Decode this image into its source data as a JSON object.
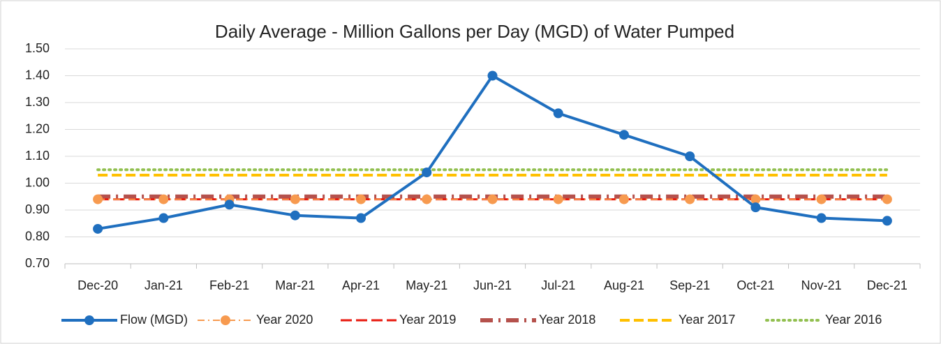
{
  "chart_data": {
    "type": "line",
    "title": "Daily Average - Million Gallons per Day (MGD) of Water Pumped",
    "categories": [
      "Dec-20",
      "Jan-21",
      "Feb-21",
      "Mar-21",
      "Apr-21",
      "May-21",
      "Jun-21",
      "Jul-21",
      "Aug-21",
      "Sep-21",
      "Oct-21",
      "Nov-21",
      "Dec-21"
    ],
    "series": [
      {
        "name": "Flow (MGD)",
        "color": "#1f6fbf",
        "values": [
          0.83,
          0.87,
          0.92,
          0.88,
          0.87,
          1.04,
          1.4,
          1.26,
          1.18,
          1.1,
          0.91,
          0.87,
          0.86
        ]
      },
      {
        "name": "Year 2020",
        "color": "#f79a4f",
        "values": [
          0.94,
          0.94,
          0.94,
          0.94,
          0.94,
          0.94,
          0.94,
          0.94,
          0.94,
          0.94,
          0.94,
          0.94,
          0.94
        ]
      },
      {
        "name": "Year 2019",
        "color": "#e8190f",
        "values": [
          0.94,
          0.94,
          0.94,
          0.94,
          0.94,
          0.94,
          0.94,
          0.94,
          0.94,
          0.94,
          0.94,
          0.94,
          0.94
        ]
      },
      {
        "name": "Year 2018",
        "color": "#b5514c",
        "values": [
          0.95,
          0.95,
          0.95,
          0.95,
          0.95,
          0.95,
          0.95,
          0.95,
          0.95,
          0.95,
          0.95,
          0.95,
          0.95
        ]
      },
      {
        "name": "Year 2017",
        "color": "#ffc000",
        "values": [
          1.03,
          1.03,
          1.03,
          1.03,
          1.03,
          1.03,
          1.03,
          1.03,
          1.03,
          1.03,
          1.03,
          1.03,
          1.03
        ]
      },
      {
        "name": "Year 2016",
        "color": "#92c050",
        "values": [
          1.05,
          1.05,
          1.05,
          1.05,
          1.05,
          1.05,
          1.05,
          1.05,
          1.05,
          1.05,
          1.05,
          1.05,
          1.05
        ]
      }
    ],
    "ylim": [
      0.7,
      1.5
    ],
    "yticks": [
      {
        "value": 0.7,
        "label": "0.70"
      },
      {
        "value": 0.8,
        "label": "0.80"
      },
      {
        "value": 0.9,
        "label": "0.90"
      },
      {
        "value": 1.0,
        "label": "1.00"
      },
      {
        "value": 1.1,
        "label": "1.10"
      },
      {
        "value": 1.2,
        "label": "1.20"
      },
      {
        "value": 1.3,
        "label": "1.30"
      },
      {
        "value": 1.4,
        "label": "1.40"
      },
      {
        "value": 1.5,
        "label": "1.50"
      }
    ],
    "grid": true,
    "legend": "bottom"
  }
}
